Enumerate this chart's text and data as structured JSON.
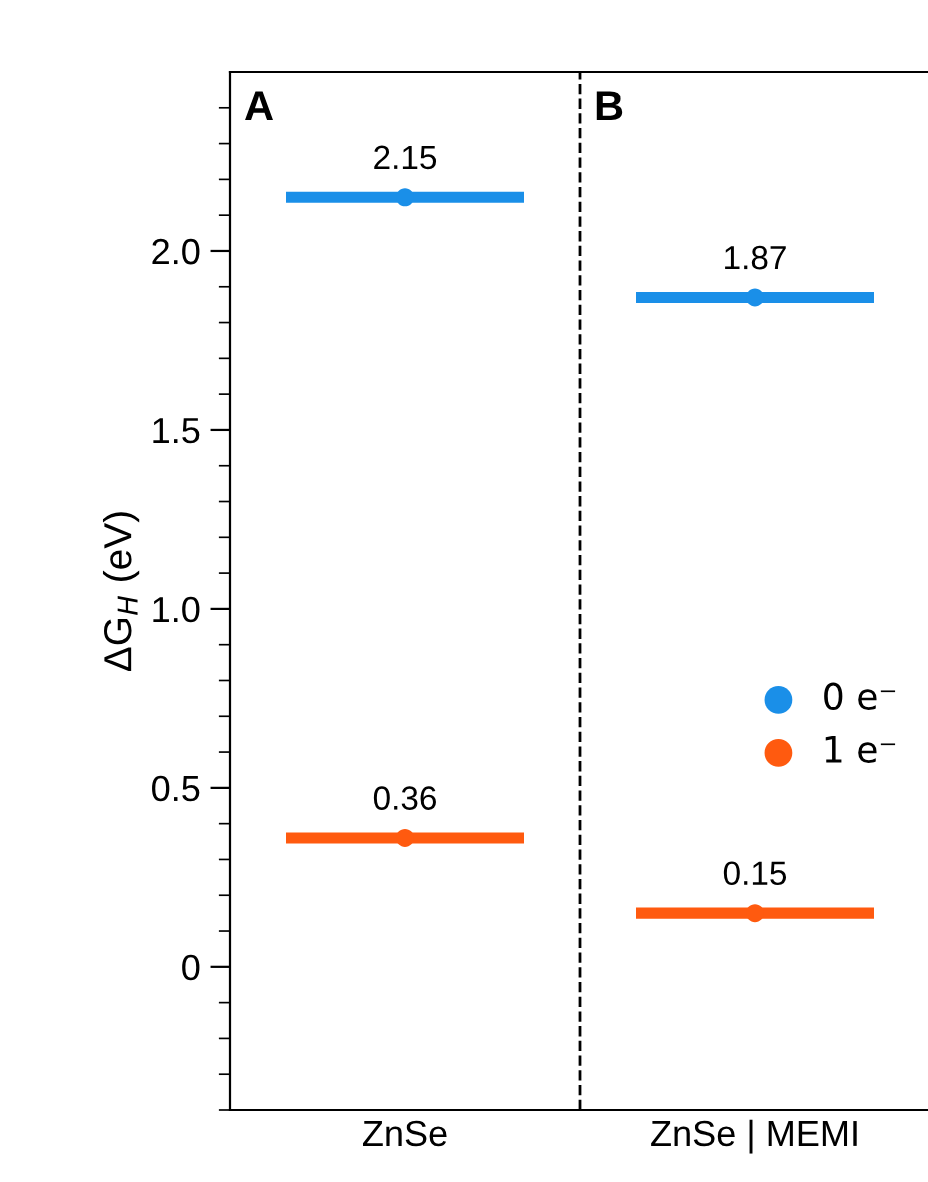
{
  "chart_data": {
    "type": "scatter",
    "ylabel": "ΔG$_{H}$ (eV)",
    "categories": [
      "ZnSe",
      "ZnSe | MEMI"
    ],
    "series": [
      {
        "name": "0 e⁻",
        "color": "#1a8fe8",
        "values": [
          2.15,
          1.87
        ]
      },
      {
        "name": "1 e⁻",
        "color": "#ff5a0f",
        "values": [
          0.36,
          0.15
        ]
      }
    ],
    "ylim": [
      -0.4,
      2.5
    ],
    "yticks": [
      {
        "value": 0,
        "label": "0"
      },
      0.5,
      {
        "value": 1,
        "label": "1.0"
      },
      1.5,
      {
        "value": 2,
        "label": "2.0"
      }
    ],
    "data_labels": true,
    "legend": "right",
    "grid": false,
    "annotations": [
      "A",
      "B"
    ]
  }
}
